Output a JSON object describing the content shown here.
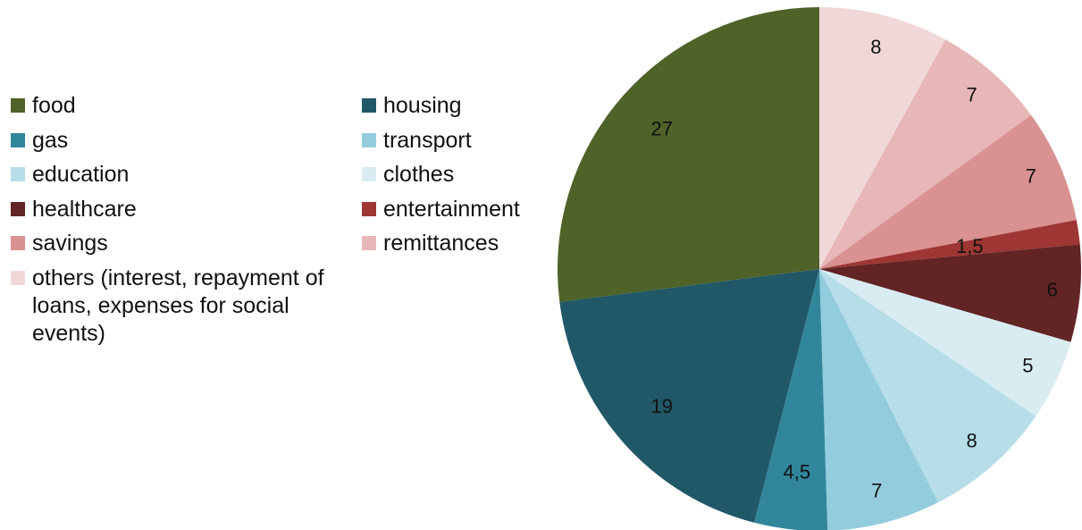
{
  "chart_data": {
    "type": "pie",
    "legend_placement": "left",
    "start_angle_deg": 0,
    "direction": "clockwise",
    "slices": [
      {
        "label": "others (interest, repayment of loans, expenses for social events)",
        "value": 8,
        "value_label": "8",
        "color": "#f1d8d8"
      },
      {
        "label": "remittances",
        "value": 7,
        "value_label": "7",
        "color": "#e7b6b6"
      },
      {
        "label": "savings",
        "value": 7,
        "value_label": "7",
        "color": "#d99191"
      },
      {
        "label": "entertainment",
        "value": 1.5,
        "value_label": "1,5",
        "color": "#9e3633"
      },
      {
        "label": "healthcare",
        "value": 6,
        "value_label": "6",
        "color": "#622425"
      },
      {
        "label": "clothes",
        "value": 5,
        "value_label": "5",
        "color": "#d8ecf2"
      },
      {
        "label": "education",
        "value": 8,
        "value_label": "8",
        "color": "#b6dde8"
      },
      {
        "label": "transport",
        "value": 7,
        "value_label": "7",
        "color": "#93cddd"
      },
      {
        "label": "gas",
        "value": 4.5,
        "value_label": "4,5",
        "color": "#31869b"
      },
      {
        "label": "housing",
        "value": 19,
        "value_label": "19",
        "color": "#215868"
      },
      {
        "label": "food",
        "value": 27,
        "value_label": "27",
        "color": "#4f6228"
      }
    ]
  },
  "legend": {
    "items": [
      {
        "label": "food",
        "color": "#4f6228"
      },
      {
        "label": "housing",
        "color": "#215868"
      },
      {
        "label": "gas",
        "color": "#31869b"
      },
      {
        "label": "transport",
        "color": "#93cddd"
      },
      {
        "label": "education",
        "color": "#b6dde8"
      },
      {
        "label": "clothes",
        "color": "#d8ecf2"
      },
      {
        "label": "healthcare",
        "color": "#622425"
      },
      {
        "label": "entertainment",
        "color": "#9e3633"
      },
      {
        "label": "savings",
        "color": "#d99191"
      },
      {
        "label": "remittances",
        "color": "#e7b6b6"
      },
      {
        "label": "others (interest, repayment of loans, expenses for social events)",
        "color": "#f1d8d8"
      }
    ]
  }
}
